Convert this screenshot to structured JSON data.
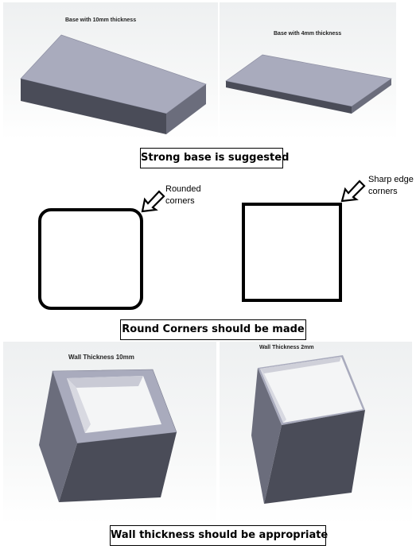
{
  "section1": {
    "left_label": "Base with 10mm thickness",
    "right_label": "Base with 4mm thickness",
    "caption": "Strong base is suggested"
  },
  "section2": {
    "left_note_line1": "Rounded",
    "left_note_line2": "corners",
    "right_note_line1": "Sharp edge",
    "right_note_line2": "corners",
    "caption": "Round Corners should be made"
  },
  "section3": {
    "left_label": "Wall Thickness 10mm",
    "right_label": "Wall Thickness 2mm",
    "caption": "Wall thickness should be appropriate"
  },
  "colors": {
    "top_face": "#a9abbd",
    "front_face": "#4a4c58",
    "side_face": "#6b6d7c",
    "outline": "#000000"
  }
}
